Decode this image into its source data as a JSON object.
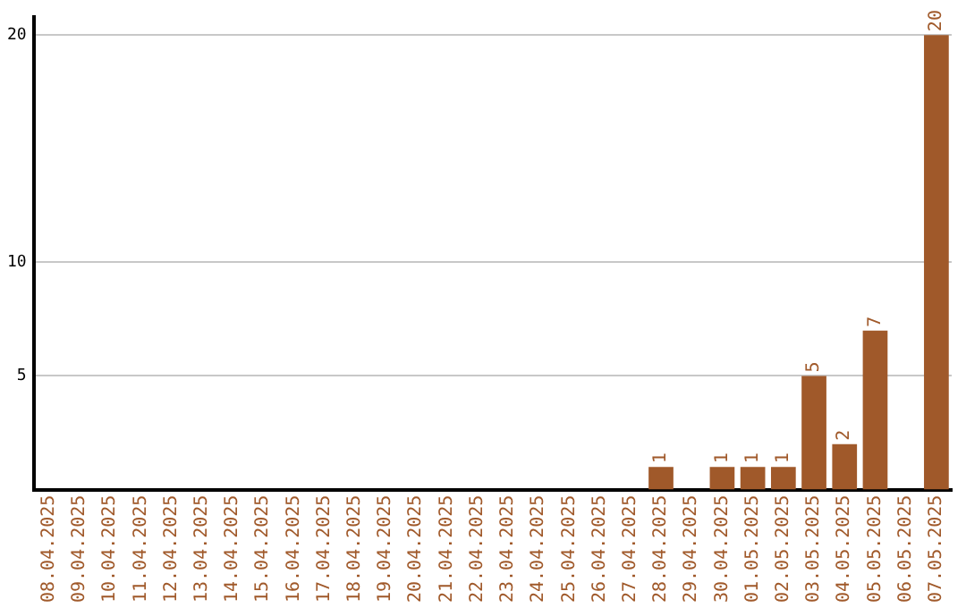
{
  "chart_data": {
    "type": "bar",
    "categories": [
      "08.04.2025",
      "09.04.2025",
      "10.04.2025",
      "11.04.2025",
      "12.04.2025",
      "13.04.2025",
      "14.04.2025",
      "15.04.2025",
      "16.04.2025",
      "17.04.2025",
      "18.04.2025",
      "19.04.2025",
      "20.04.2025",
      "21.04.2025",
      "22.04.2025",
      "23.04.2025",
      "24.04.2025",
      "25.04.2025",
      "26.04.2025",
      "27.04.2025",
      "28.04.2025",
      "29.04.2025",
      "30.04.2025",
      "01.05.2025",
      "02.05.2025",
      "03.05.2025",
      "04.05.2025",
      "05.05.2025",
      "06.05.2025",
      "07.05.2025"
    ],
    "values": [
      0,
      0,
      0,
      0,
      0,
      0,
      0,
      0,
      0,
      0,
      0,
      0,
      0,
      0,
      0,
      0,
      0,
      0,
      0,
      0,
      1,
      0,
      1,
      1,
      1,
      5,
      2,
      7,
      0,
      20
    ],
    "value_labels": [
      null,
      null,
      null,
      null,
      null,
      null,
      null,
      null,
      null,
      null,
      null,
      null,
      null,
      null,
      null,
      null,
      null,
      null,
      null,
      null,
      "1",
      null,
      "1",
      "1",
      "1",
      "5",
      "2",
      "7",
      null,
      "20"
    ],
    "color": "#a0592a",
    "ylim": [
      0,
      20.8
    ],
    "yticks": [
      5,
      10,
      20
    ],
    "grid": "y"
  }
}
